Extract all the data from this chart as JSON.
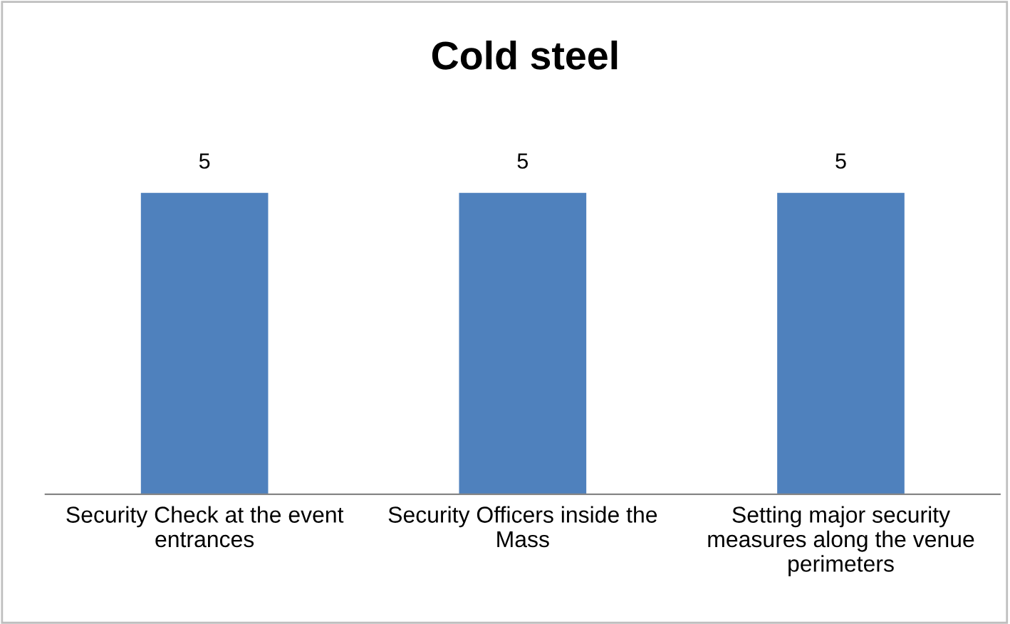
{
  "chart_data": {
    "type": "bar",
    "title": "Cold steel",
    "categories": [
      "Security Check at the event entrances",
      "Security Officers inside the Mass",
      "Setting major security measures along the venue perimeters"
    ],
    "values": [
      5,
      5,
      5
    ],
    "color": "#4f81bd",
    "data_labels": true
  }
}
